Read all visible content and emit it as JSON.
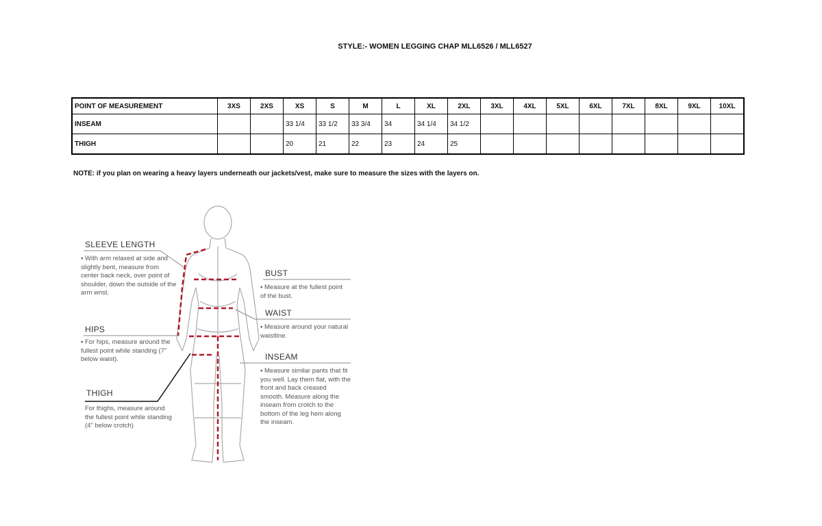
{
  "title": "STYLE:- WOMEN LEGGING CHAP  MLL6526 / MLL6527",
  "table": {
    "header": [
      "POINT OF MEASUREMENT",
      "3XS",
      "2XS",
      "XS",
      "S",
      "M",
      "L",
      "XL",
      "2XL",
      "3XL",
      "4XL",
      "5XL",
      "6XL",
      "7XL",
      "8XL",
      "9XL",
      "10XL"
    ],
    "rows": [
      [
        "INSEAM",
        "",
        "",
        "33 1/4",
        "33 1/2",
        "33 3/4",
        "34",
        "34 1/4",
        "34 1/2",
        "",
        "",
        "",
        "",
        "",
        "",
        "",
        ""
      ],
      [
        "THIGH",
        "",
        "",
        "20",
        "21",
        "22",
        "23",
        "24",
        "25",
        "",
        "",
        "",
        "",
        "",
        "",
        "",
        ""
      ]
    ]
  },
  "note": "NOTE: if you plan on wearing a heavy layers underneath our jackets/vest, make sure to measure the sizes with the layers on.",
  "guide": {
    "sleeve": {
      "label": "SLEEVE LENGTH",
      "text": "▪ With arm relaxed at side and slightly bent, measure from center back neck, over point of shoulder, down the outside of the arm wrist."
    },
    "hips": {
      "label": "HIPS",
      "text": "▪ For hips, measure around the fullest point while standing (7\" below waist)."
    },
    "thigh": {
      "label": "THIGH",
      "text": "For thighs, measure around the fullest point while standing (4\" below crotch)"
    },
    "bust": {
      "label": "BUST",
      "text": "▪ Measure at the fullest point of the bust."
    },
    "waist": {
      "label": "WAIST",
      "text": "▪ Measure around your natural waistline."
    },
    "inseam": {
      "label": "INSEAM",
      "text": "▪ Measure similar pants that fit you well. Lay them flat, with the front and back creased smooth. Measure along the inseam from crotch to the bottom of the leg hem along the inseam."
    }
  },
  "colors": {
    "dash": "#b0182a"
  }
}
